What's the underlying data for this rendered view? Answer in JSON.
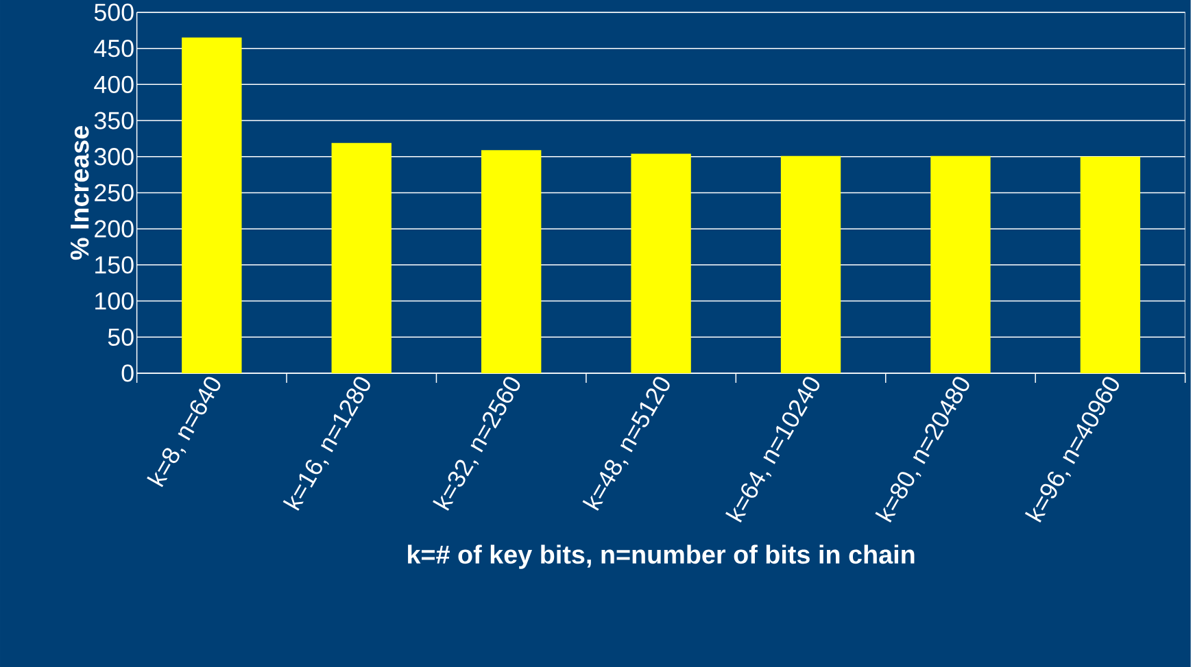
{
  "chart_data": {
    "type": "bar",
    "categories": [
      "k=8, n=640",
      "k=16, n=1280",
      "k=32, n=2560",
      "k=48, n=5120",
      "k=64, n=10240",
      "k=80, n=20480",
      "k=96, n=40960"
    ],
    "values": [
      465,
      319,
      309,
      304,
      301,
      301,
      300
    ],
    "color": "#ffff00",
    "xlabel": "k=# of key bits, n=number of bits in chain",
    "ylabel": "% Increase",
    "ylim": [
      0,
      500
    ],
    "yticks": [
      0,
      50,
      100,
      150,
      200,
      250,
      300,
      350,
      400,
      450,
      500
    ],
    "grid": "y"
  }
}
